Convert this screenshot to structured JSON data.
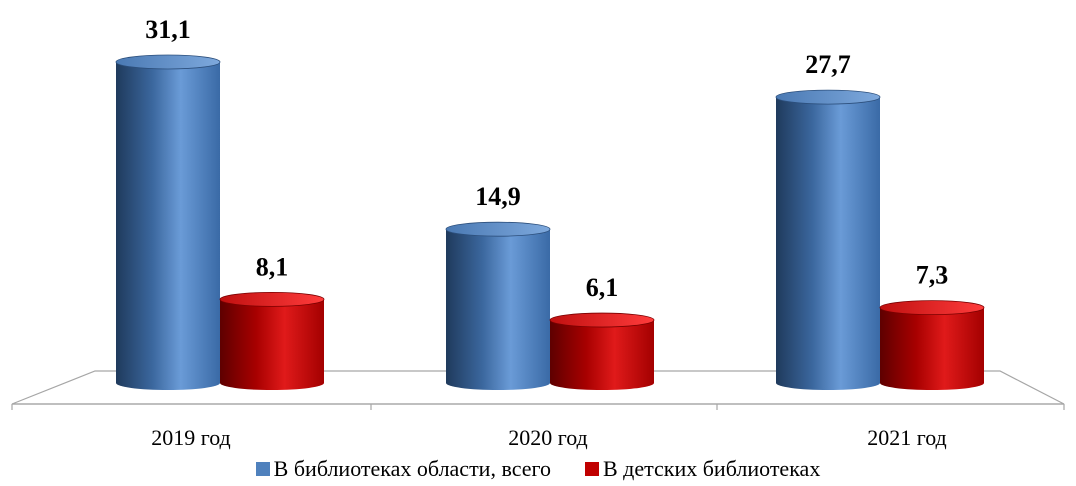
{
  "chart_data": {
    "type": "bar",
    "title": "",
    "xlabel": "",
    "ylabel": "",
    "categories": [
      "2019 год",
      "2020 год",
      "2021 год"
    ],
    "series": [
      {
        "name": "В библиотеках области, всего",
        "values": [
          31.1,
          14.9,
          27.7
        ],
        "labels": [
          "31,1",
          "14,9",
          "27,7"
        ],
        "color": "#4f81bd"
      },
      {
        "name": "В детских библиотеках",
        "values": [
          8.1,
          6.1,
          7.3
        ],
        "labels": [
          "8,1",
          "6,1",
          "7,3"
        ],
        "color": "#c00000"
      }
    ],
    "ylim": [
      0,
      31.1
    ],
    "grid": false,
    "legend_position": "bottom",
    "style": "3d-cylinder"
  }
}
